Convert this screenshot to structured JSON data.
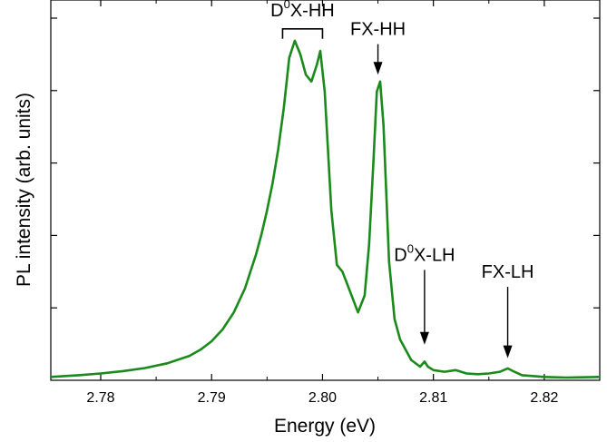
{
  "chart_data": {
    "type": "line",
    "title": "",
    "xlabel": "Energy (eV)",
    "ylabel": "PL intensity (arb. units)",
    "xlim": [
      2.7755,
      2.825
    ],
    "ylim": [
      0.0,
      1.12
    ],
    "x_ticks": [
      2.78,
      2.79,
      2.8,
      2.81,
      2.82
    ],
    "x_tick_labels": [
      "2.78",
      "2.79",
      "2.80",
      "2.81",
      "2.82"
    ],
    "y_ticks_count": 5,
    "grid": false,
    "legend": "none",
    "series_color": "#1a8a1a",
    "series": [
      {
        "x": [
          2.7755,
          2.778,
          2.78,
          2.782,
          2.784,
          2.786,
          2.788,
          2.789,
          2.79,
          2.791,
          2.792,
          2.793,
          2.794,
          2.7945,
          2.795,
          2.7955,
          2.796,
          2.7965,
          2.797,
          2.7975,
          2.798,
          2.7985,
          2.799,
          2.7995,
          2.7998,
          2.8002,
          2.8008,
          2.8013,
          2.8018,
          2.8025,
          2.8032,
          2.8038,
          2.8042,
          2.8046,
          2.8049,
          2.8052,
          2.8055,
          2.806,
          2.8065,
          2.807,
          2.808,
          2.8088,
          2.8092,
          2.8095,
          2.81,
          2.811,
          2.812,
          2.813,
          2.814,
          2.815,
          2.816,
          2.8167,
          2.8173,
          2.818,
          2.82,
          2.822,
          2.825
        ],
        "y": [
          0.01,
          0.015,
          0.02,
          0.027,
          0.036,
          0.05,
          0.072,
          0.09,
          0.115,
          0.15,
          0.2,
          0.27,
          0.37,
          0.43,
          0.5,
          0.58,
          0.68,
          0.8,
          0.95,
          1.0,
          0.96,
          0.9,
          0.88,
          0.93,
          0.97,
          0.85,
          0.5,
          0.34,
          0.32,
          0.26,
          0.2,
          0.25,
          0.4,
          0.65,
          0.85,
          0.88,
          0.75,
          0.35,
          0.18,
          0.12,
          0.06,
          0.04,
          0.055,
          0.04,
          0.03,
          0.025,
          0.03,
          0.02,
          0.018,
          0.02,
          0.025,
          0.035,
          0.025,
          0.015,
          0.01,
          0.008,
          0.01
        ]
      }
    ],
    "annotations": [
      {
        "id": "d0x_hh",
        "text_main": "D",
        "sup": "0",
        "text_rest": "X-HH",
        "type": "bracket",
        "x_start": 2.7964,
        "x_end": 2.8,
        "y_level": 1.035
      },
      {
        "id": "fx_hh",
        "text_main": "FX-HH",
        "sup": "",
        "text_rest": "",
        "type": "arrow",
        "x": 2.805,
        "y_from": 0.99,
        "y_to": 0.9
      },
      {
        "id": "d0x_lh",
        "text_main": "D",
        "sup": "0",
        "text_rest": "X-LH",
        "type": "arrow",
        "x": 2.8092,
        "y_from": 0.325,
        "y_to": 0.105
      },
      {
        "id": "fx_lh",
        "text_main": "FX-LH",
        "sup": "",
        "text_rest": "",
        "type": "arrow",
        "x": 2.8167,
        "y_from": 0.275,
        "y_to": 0.065
      }
    ]
  }
}
